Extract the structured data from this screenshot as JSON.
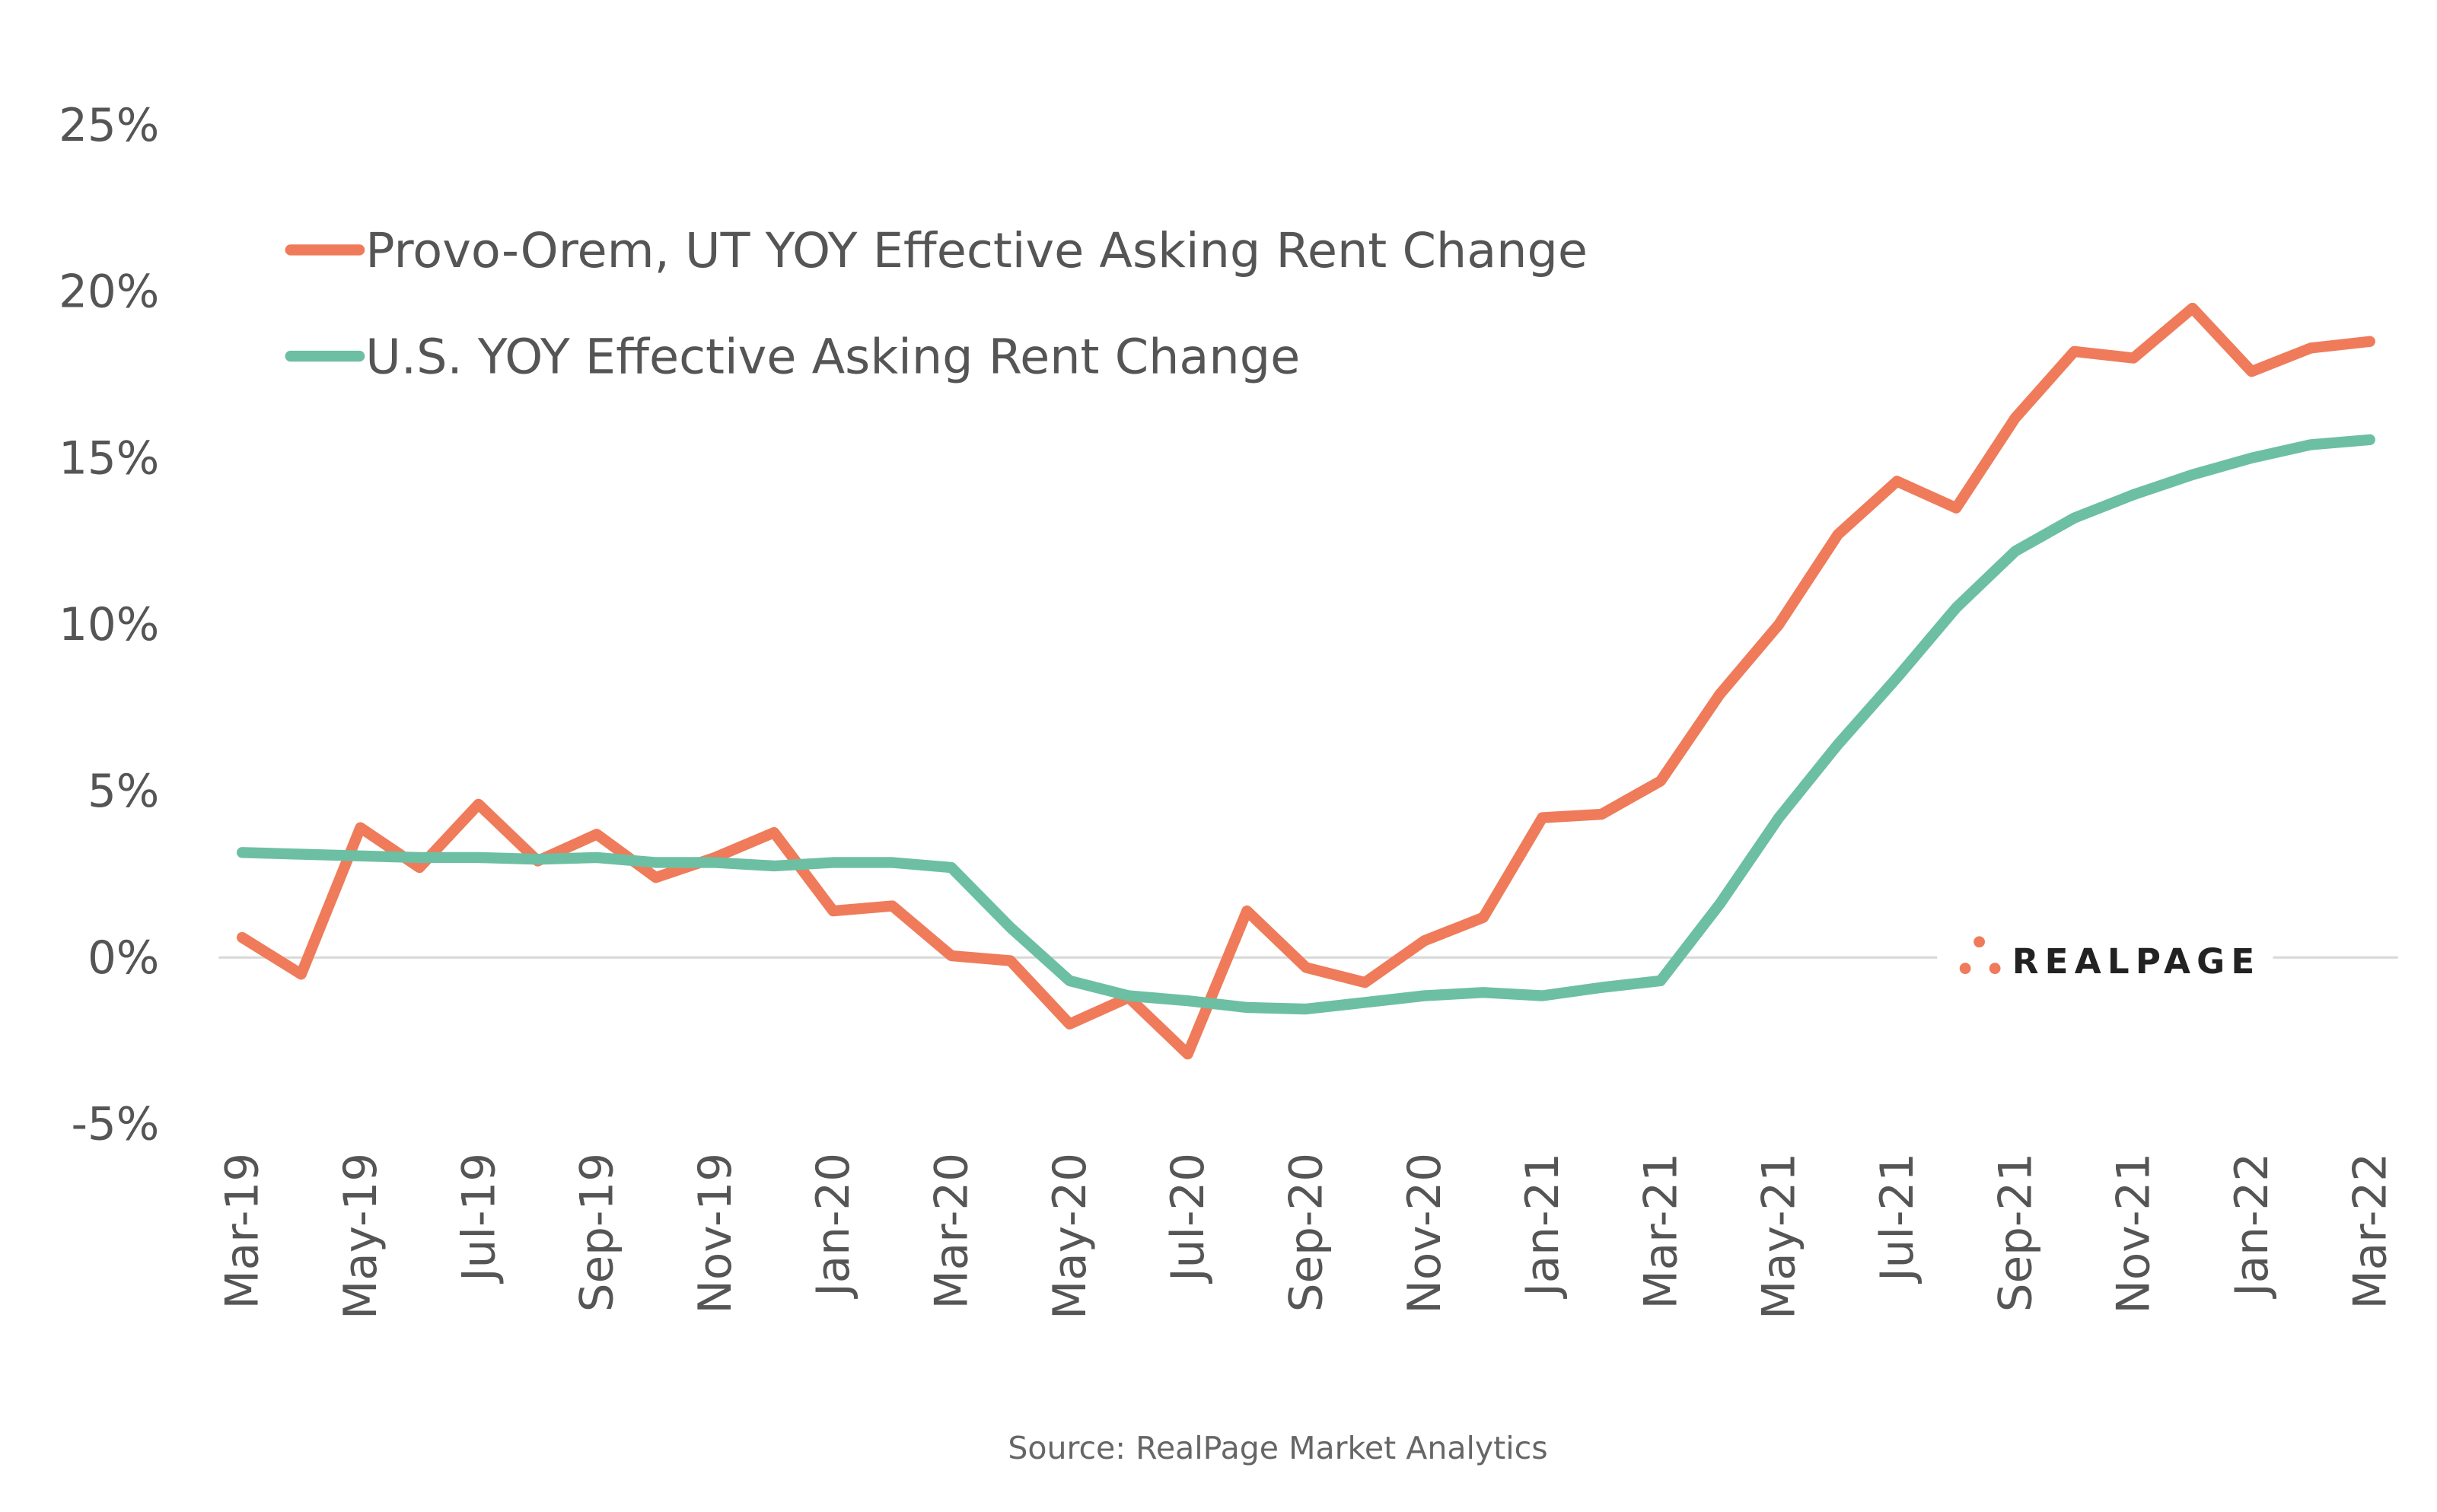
{
  "chart_data": {
    "type": "line",
    "title": "",
    "xlabel": "",
    "ylabel": "",
    "ylim": [
      -5,
      25
    ],
    "y_ticks": [
      "25%",
      "20%",
      "15%",
      "10%",
      "5%",
      "0%",
      "-5%"
    ],
    "y_tick_values": [
      25,
      20,
      15,
      10,
      5,
      0,
      -5
    ],
    "x": [
      "Mar-19",
      "Apr-19",
      "May-19",
      "Jun-19",
      "Jul-19",
      "Aug-19",
      "Sep-19",
      "Oct-19",
      "Nov-19",
      "Dec-19",
      "Jan-20",
      "Feb-20",
      "Mar-20",
      "Apr-20",
      "May-20",
      "Jun-20",
      "Jul-20",
      "Aug-20",
      "Sep-20",
      "Oct-20",
      "Nov-20",
      "Dec-20",
      "Jan-21",
      "Feb-21",
      "Mar-21",
      "Apr-21",
      "May-21",
      "Jun-21",
      "Jul-21",
      "Aug-21",
      "Sep-21",
      "Oct-21",
      "Nov-21",
      "Dec-21",
      "Jan-22",
      "Feb-22",
      "Mar-22"
    ],
    "x_tick_labels": [
      "Mar-19",
      "May-19",
      "Jul-19",
      "Sep-19",
      "Nov-19",
      "Jan-20",
      "Mar-20",
      "May-20",
      "Jul-20",
      "Sep-20",
      "Nov-20",
      "Jan-21",
      "Mar-21",
      "May-21",
      "Jul-21",
      "Sep-21",
      "Nov-21",
      "Jan-22",
      "Mar-22"
    ],
    "grid": "zero line only",
    "legend_placement": "top-left",
    "series": [
      {
        "name": "Provo-Orem, UT YOY Effective Asking Rent Change",
        "color": "#EF7B5A",
        "values": [
          0.6,
          -0.5,
          3.9,
          2.7,
          4.6,
          2.9,
          3.7,
          2.4,
          3.0,
          3.75,
          1.4,
          1.55,
          0.05,
          -0.1,
          -2.0,
          -1.2,
          -2.9,
          1.4,
          -0.3,
          -0.75,
          0.5,
          1.2,
          4.2,
          4.3,
          5.3,
          7.9,
          10.0,
          12.7,
          14.3,
          13.5,
          16.2,
          18.2,
          18.0,
          19.5,
          17.6,
          18.3,
          18.5
        ]
      },
      {
        "name": "U.S. YOY Effective Asking Rent Change",
        "color": "#6CBFA3",
        "values": [
          3.15,
          3.1,
          3.05,
          3.0,
          3.0,
          2.95,
          3.0,
          2.85,
          2.85,
          2.75,
          2.85,
          2.85,
          2.7,
          0.9,
          -0.7,
          -1.15,
          -1.3,
          -1.5,
          -1.55,
          -1.35,
          -1.15,
          -1.05,
          -1.15,
          -0.9,
          -0.7,
          1.6,
          4.2,
          6.4,
          8.4,
          10.5,
          12.2,
          13.2,
          13.9,
          14.5,
          15.0,
          15.4,
          15.55
        ]
      }
    ],
    "source": "Source: RealPage Market Analytics",
    "logo": "REALPAGE"
  }
}
